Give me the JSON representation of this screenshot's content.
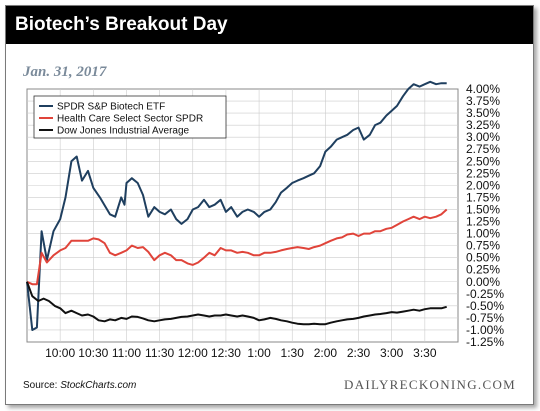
{
  "header": {
    "title": "Biotech’s Breakout Day",
    "date": "Jan. 31, 2017"
  },
  "footer": {
    "source_prefix": "Source: ",
    "source_name": "StockCharts.com",
    "brand": "DAILYRECKONING.COM"
  },
  "colors": {
    "biotech": "#1f3f5f",
    "healthcare": "#e0443a",
    "dow": "#111111",
    "grid": "#cccccc"
  },
  "chart_data": {
    "type": "line",
    "title": "Biotech’s Breakout Day",
    "subtitle": "Jan. 31, 2017",
    "legend_position": "top-left",
    "grid": true,
    "x_range": [
      9.5,
      16.0
    ],
    "ylim": [
      -1.25,
      4.0
    ],
    "y_ticks": [
      4.0,
      3.75,
      3.5,
      3.25,
      3.0,
      2.75,
      2.5,
      2.25,
      2.0,
      1.75,
      1.5,
      1.25,
      1.0,
      0.75,
      0.5,
      0.25,
      0.0,
      -0.25,
      -0.5,
      -0.75,
      -1.0,
      -1.25
    ],
    "y_tick_labels": [
      "4.00%",
      "3.75%",
      "3.50%",
      "3.25%",
      "3.00%",
      "2.75%",
      "2.50%",
      "2.25%",
      "2.00%",
      "1.75%",
      "1.50%",
      "1.25%",
      "1.00%",
      "0.75%",
      "0.50%",
      "0.25%",
      "0.00%",
      "-0.25%",
      "-0.50%",
      "-0.75%",
      "-1.00%",
      "-1.25%"
    ],
    "x_ticks": [
      10.0,
      10.5,
      11.0,
      11.5,
      12.0,
      12.5,
      13.0,
      13.5,
      14.0,
      14.5,
      15.0,
      15.5
    ],
    "x_tick_labels": [
      "10:00",
      "10:30",
      "11:00",
      "11:30",
      "12:00",
      "12:30",
      "1:00",
      "1:30",
      "2:00",
      "2:30",
      "3:00",
      "3:30"
    ],
    "series": [
      {
        "name": "SPDR S&P Biotech ETF",
        "color": "#1f3f5f",
        "x": [
          9.5,
          9.58,
          9.65,
          9.72,
          9.8,
          9.9,
          10.0,
          10.08,
          10.17,
          10.25,
          10.33,
          10.42,
          10.5,
          10.6,
          10.75,
          10.83,
          10.92,
          10.97,
          11.0,
          11.08,
          11.17,
          11.25,
          11.33,
          11.42,
          11.5,
          11.58,
          11.67,
          11.75,
          11.83,
          11.92,
          12.0,
          12.08,
          12.17,
          12.25,
          12.33,
          12.42,
          12.5,
          12.58,
          12.67,
          12.75,
          12.83,
          12.92,
          13.0,
          13.08,
          13.17,
          13.25,
          13.33,
          13.42,
          13.5,
          13.58,
          13.67,
          13.75,
          13.83,
          13.92,
          14.0,
          14.08,
          14.17,
          14.25,
          14.33,
          14.42,
          14.5,
          14.58,
          14.67,
          14.75,
          14.83,
          14.92,
          15.0,
          15.08,
          15.17,
          15.25,
          15.33,
          15.42,
          15.5,
          15.58,
          15.67,
          15.75,
          15.83
        ],
        "values": [
          0.0,
          -1.0,
          -0.95,
          1.05,
          0.45,
          1.05,
          1.3,
          1.75,
          2.5,
          2.6,
          2.1,
          2.3,
          1.95,
          1.75,
          1.4,
          1.35,
          1.75,
          1.6,
          2.05,
          2.15,
          2.05,
          1.8,
          1.35,
          1.55,
          1.45,
          1.4,
          1.5,
          1.3,
          1.2,
          1.3,
          1.5,
          1.55,
          1.7,
          1.55,
          1.6,
          1.7,
          1.45,
          1.55,
          1.35,
          1.45,
          1.5,
          1.45,
          1.35,
          1.45,
          1.5,
          1.65,
          1.85,
          1.95,
          2.05,
          2.1,
          2.15,
          2.2,
          2.25,
          2.4,
          2.7,
          2.8,
          2.95,
          3.0,
          3.05,
          3.15,
          3.2,
          2.95,
          3.05,
          3.25,
          3.3,
          3.45,
          3.55,
          3.65,
          3.85,
          4.0,
          4.1,
          4.05,
          4.1,
          4.15,
          4.1,
          4.12,
          4.12
        ]
      },
      {
        "name": "Health Care Select Sector SPDR",
        "color": "#e0443a",
        "x": [
          9.5,
          9.58,
          9.65,
          9.72,
          9.8,
          9.9,
          10.0,
          10.08,
          10.17,
          10.25,
          10.33,
          10.42,
          10.5,
          10.58,
          10.67,
          10.75,
          10.83,
          10.92,
          11.0,
          11.08,
          11.17,
          11.25,
          11.33,
          11.42,
          11.5,
          11.58,
          11.67,
          11.75,
          11.83,
          11.92,
          12.0,
          12.08,
          12.17,
          12.25,
          12.33,
          12.42,
          12.5,
          12.58,
          12.67,
          12.75,
          12.83,
          12.92,
          13.0,
          13.08,
          13.17,
          13.25,
          13.33,
          13.42,
          13.5,
          13.58,
          13.67,
          13.75,
          13.83,
          13.92,
          14.0,
          14.08,
          14.17,
          14.25,
          14.33,
          14.42,
          14.5,
          14.58,
          14.67,
          14.75,
          14.83,
          14.92,
          15.0,
          15.08,
          15.17,
          15.25,
          15.33,
          15.42,
          15.5,
          15.58,
          15.67,
          15.75,
          15.83
        ],
        "values": [
          0.0,
          -0.05,
          -0.05,
          0.6,
          0.4,
          0.55,
          0.65,
          0.7,
          0.85,
          0.85,
          0.85,
          0.85,
          0.9,
          0.88,
          0.8,
          0.6,
          0.55,
          0.6,
          0.65,
          0.75,
          0.7,
          0.72,
          0.62,
          0.45,
          0.55,
          0.6,
          0.55,
          0.45,
          0.45,
          0.38,
          0.35,
          0.4,
          0.5,
          0.6,
          0.55,
          0.7,
          0.65,
          0.65,
          0.6,
          0.62,
          0.6,
          0.55,
          0.55,
          0.6,
          0.6,
          0.62,
          0.65,
          0.68,
          0.7,
          0.72,
          0.7,
          0.68,
          0.72,
          0.75,
          0.8,
          0.85,
          0.9,
          0.92,
          0.98,
          1.0,
          0.95,
          1.0,
          1.0,
          1.05,
          1.05,
          1.1,
          1.12,
          1.18,
          1.25,
          1.3,
          1.35,
          1.3,
          1.35,
          1.32,
          1.35,
          1.4,
          1.5
        ]
      },
      {
        "name": "Dow Jones Industrial Average",
        "color": "#111111",
        "x": [
          9.5,
          9.58,
          9.67,
          9.75,
          9.83,
          9.92,
          10.0,
          10.08,
          10.17,
          10.25,
          10.33,
          10.42,
          10.5,
          10.58,
          10.67,
          10.75,
          10.83,
          10.92,
          11.0,
          11.08,
          11.17,
          11.25,
          11.33,
          11.42,
          11.5,
          11.58,
          11.67,
          11.75,
          11.83,
          11.92,
          12.0,
          12.08,
          12.17,
          12.25,
          12.33,
          12.42,
          12.5,
          12.58,
          12.67,
          12.75,
          12.83,
          12.92,
          13.0,
          13.08,
          13.17,
          13.25,
          13.33,
          13.42,
          13.5,
          13.58,
          13.67,
          13.75,
          13.83,
          13.92,
          14.0,
          14.08,
          14.17,
          14.25,
          14.33,
          14.42,
          14.5,
          14.58,
          14.67,
          14.75,
          14.83,
          14.92,
          15.0,
          15.08,
          15.17,
          15.25,
          15.33,
          15.42,
          15.5,
          15.58,
          15.67,
          15.75,
          15.83
        ],
        "values": [
          0.0,
          -0.3,
          -0.4,
          -0.35,
          -0.4,
          -0.5,
          -0.55,
          -0.65,
          -0.6,
          -0.65,
          -0.7,
          -0.68,
          -0.72,
          -0.8,
          -0.82,
          -0.78,
          -0.8,
          -0.75,
          -0.77,
          -0.72,
          -0.73,
          -0.76,
          -0.8,
          -0.82,
          -0.8,
          -0.78,
          -0.77,
          -0.75,
          -0.73,
          -0.72,
          -0.7,
          -0.68,
          -0.7,
          -0.72,
          -0.7,
          -0.7,
          -0.68,
          -0.7,
          -0.72,
          -0.7,
          -0.72,
          -0.75,
          -0.8,
          -0.78,
          -0.75,
          -0.77,
          -0.8,
          -0.82,
          -0.85,
          -0.87,
          -0.88,
          -0.88,
          -0.87,
          -0.88,
          -0.88,
          -0.85,
          -0.82,
          -0.8,
          -0.78,
          -0.77,
          -0.75,
          -0.72,
          -0.7,
          -0.68,
          -0.67,
          -0.65,
          -0.63,
          -0.64,
          -0.62,
          -0.6,
          -0.58,
          -0.6,
          -0.57,
          -0.55,
          -0.55,
          -0.55,
          -0.52
        ]
      }
    ]
  }
}
